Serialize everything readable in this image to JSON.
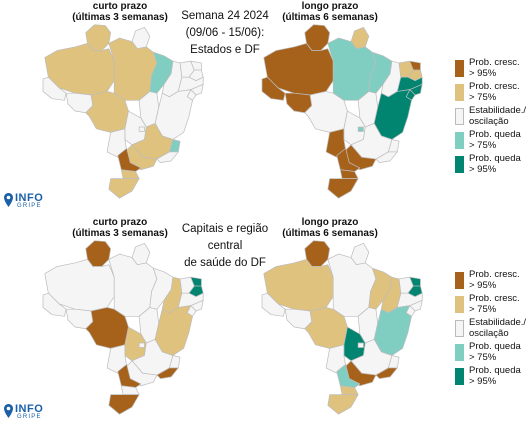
{
  "header": {
    "top_center": [
      "Semana 24 2024",
      "(09/06 - 15/06):",
      "Estados e DF"
    ],
    "bottom_center": [
      "Capitais e região central",
      "de saúde do DF"
    ]
  },
  "panels": [
    {
      "id": "tl",
      "title": [
        "curto prazo",
        "(últimas 3 semanas)"
      ]
    },
    {
      "id": "tr",
      "title": [
        "longo prazo",
        "(últimas 6 semanas)"
      ]
    },
    {
      "id": "bl",
      "title": [
        "curto prazo",
        "(últimas 3 semanas)"
      ]
    },
    {
      "id": "br",
      "title": [
        "longo prazo",
        "(últimas 6 semanas)"
      ]
    }
  ],
  "legend": [
    {
      "key": "up95",
      "label": "Prob. cresc.\n> 95%",
      "color": "#a6611a"
    },
    {
      "key": "up75",
      "label": "Prob. cresc.\n> 75%",
      "color": "#dfc27d"
    },
    {
      "key": "stable",
      "label": "Estabilidade./\noscilação",
      "color": "#f5f5f5"
    },
    {
      "key": "down75",
      "label": "Prob. queda\n> 75%",
      "color": "#80cdc1"
    },
    {
      "key": "down95",
      "label": "Prob. queda\n> 95%",
      "color": "#018571"
    }
  ],
  "logo": {
    "name": "INFO",
    "sub": "GRIPE"
  },
  "maps": {
    "tl": {
      "AM": "up75",
      "RR": "up75",
      "AP": "stable",
      "PA": "up75",
      "AC": "stable",
      "RO": "stable",
      "MT": "up75",
      "TO": "stable",
      "MA": "down75",
      "PI": "stable",
      "CE": "stable",
      "RN": "stable",
      "PB": "stable",
      "PE": "stable",
      "AL": "stable",
      "SE": "stable",
      "BA": "stable",
      "GO": "stable",
      "DF": "stable",
      "MS": "stable",
      "MG": "up75",
      "ES": "down75",
      "RJ": "stable",
      "SP": "up75",
      "PR": "up95",
      "SC": "up75",
      "RS": "up75"
    },
    "tr": {
      "AM": "up95",
      "RR": "up95",
      "AP": "up75",
      "PA": "down75",
      "AC": "up95",
      "RO": "up95",
      "MT": "stable",
      "TO": "stable",
      "MA": "down75",
      "PI": "stable",
      "CE": "up75",
      "RN": "up95",
      "PB": "up75",
      "PE": "down95",
      "AL": "down95",
      "SE": "down95",
      "BA": "down95",
      "GO": "stable",
      "DF": "down75",
      "MS": "up95",
      "MG": "stable",
      "ES": "stable",
      "RJ": "stable",
      "SP": "up95",
      "PR": "up95",
      "SC": "up95",
      "RS": "up95"
    },
    "bl": {
      "AM": "stable",
      "RR": "up95",
      "AP": "stable",
      "PA": "stable",
      "AC": "stable",
      "RO": "stable",
      "MT": "up95",
      "TO": "stable",
      "MA": "stable",
      "PI": "up75",
      "CE": "stable",
      "RN": "down95",
      "PB": "down95",
      "PE": "stable",
      "AL": "stable",
      "SE": "stable",
      "BA": "up75",
      "GO": "up75",
      "DF": "stable",
      "MS": "stable",
      "MG": "stable",
      "ES": "stable",
      "RJ": "up95",
      "SP": "stable",
      "PR": "up95",
      "SC": "stable",
      "RS": "up95"
    },
    "br": {
      "AM": "up75",
      "RR": "up95",
      "AP": "stable",
      "PA": "stable",
      "AC": "stable",
      "RO": "stable",
      "MT": "up75",
      "TO": "stable",
      "MA": "up75",
      "PI": "up75",
      "CE": "stable",
      "RN": "down95",
      "PB": "down95",
      "PE": "stable",
      "AL": "stable",
      "SE": "stable",
      "BA": "down75",
      "GO": "down95",
      "DF": "stable",
      "MS": "stable",
      "MG": "stable",
      "ES": "stable",
      "RJ": "up95",
      "SP": "up95",
      "PR": "down75",
      "SC": "up75",
      "RS": "up75"
    }
  }
}
